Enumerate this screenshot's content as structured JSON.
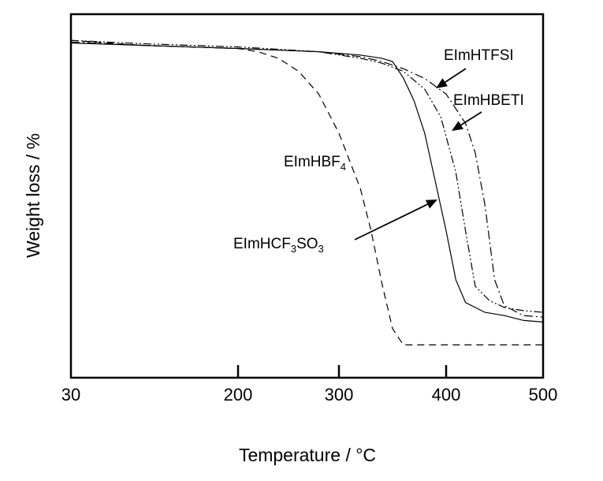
{
  "chart_data": {
    "type": "line",
    "xlabel": "Temperature / °C",
    "ylabel": "Weight loss / %",
    "x_ticks": [
      30,
      200,
      300,
      400,
      500
    ],
    "xlim": [
      30,
      500
    ],
    "ylim": [
      0,
      100
    ],
    "y_tick_labels": "none",
    "grid": false,
    "legend": "none",
    "series": [
      {
        "name": "EImHTFSI",
        "line_style": "dash-dot",
        "x": [
          30,
          100,
          200,
          280,
          320,
          340,
          360,
          380,
          400,
          420,
          430,
          440,
          450,
          460,
          480,
          500
        ],
        "y": [
          98,
          97,
          96,
          95,
          93.5,
          92,
          89.8,
          86.8,
          82,
          73,
          64,
          48,
          25,
          17,
          14,
          13.5
        ]
      },
      {
        "name": "EImHBETI",
        "line_style": "dash-dot-dot",
        "x": [
          30,
          100,
          200,
          280,
          320,
          340,
          360,
          380,
          395,
          410,
          420,
          430,
          445,
          460,
          480,
          500
        ],
        "y": [
          98.5,
          97.5,
          96.5,
          95,
          93,
          91.5,
          89,
          83.5,
          75,
          58,
          40,
          23,
          18.5,
          16.5,
          15.5,
          15
        ]
      },
      {
        "name": "EImHCF3SO3",
        "line_style": "solid",
        "x": [
          30,
          100,
          200,
          280,
          320,
          340,
          350,
          360,
          370,
          380,
          390,
          400,
          410,
          420,
          440,
          460,
          480,
          500
        ],
        "y": [
          97.7,
          97,
          96,
          95,
          94,
          93,
          92,
          87,
          80,
          70,
          55,
          40,
          25,
          18,
          15,
          14,
          12.5,
          12
        ]
      },
      {
        "name": "EImHBF4",
        "line_style": "dashed",
        "x": [
          30,
          100,
          200,
          220,
          240,
          260,
          280,
          300,
          320,
          330,
          340,
          350,
          360,
          380,
          440,
          500
        ],
        "y": [
          98.5,
          97,
          96,
          95,
          93,
          89,
          82,
          70,
          53,
          40,
          24,
          10,
          5,
          5,
          5,
          5
        ]
      }
    ],
    "annotations": [
      {
        "base": "EImHTFSI",
        "sub": "",
        "tail": ""
      },
      {
        "base": "EImHBETI",
        "sub": "",
        "tail": ""
      },
      {
        "base": "EImHBF",
        "sub": "4",
        "tail": ""
      },
      {
        "base": "EImHCF",
        "sub": "3",
        "tail": "SO",
        "sub2": "3"
      }
    ]
  }
}
